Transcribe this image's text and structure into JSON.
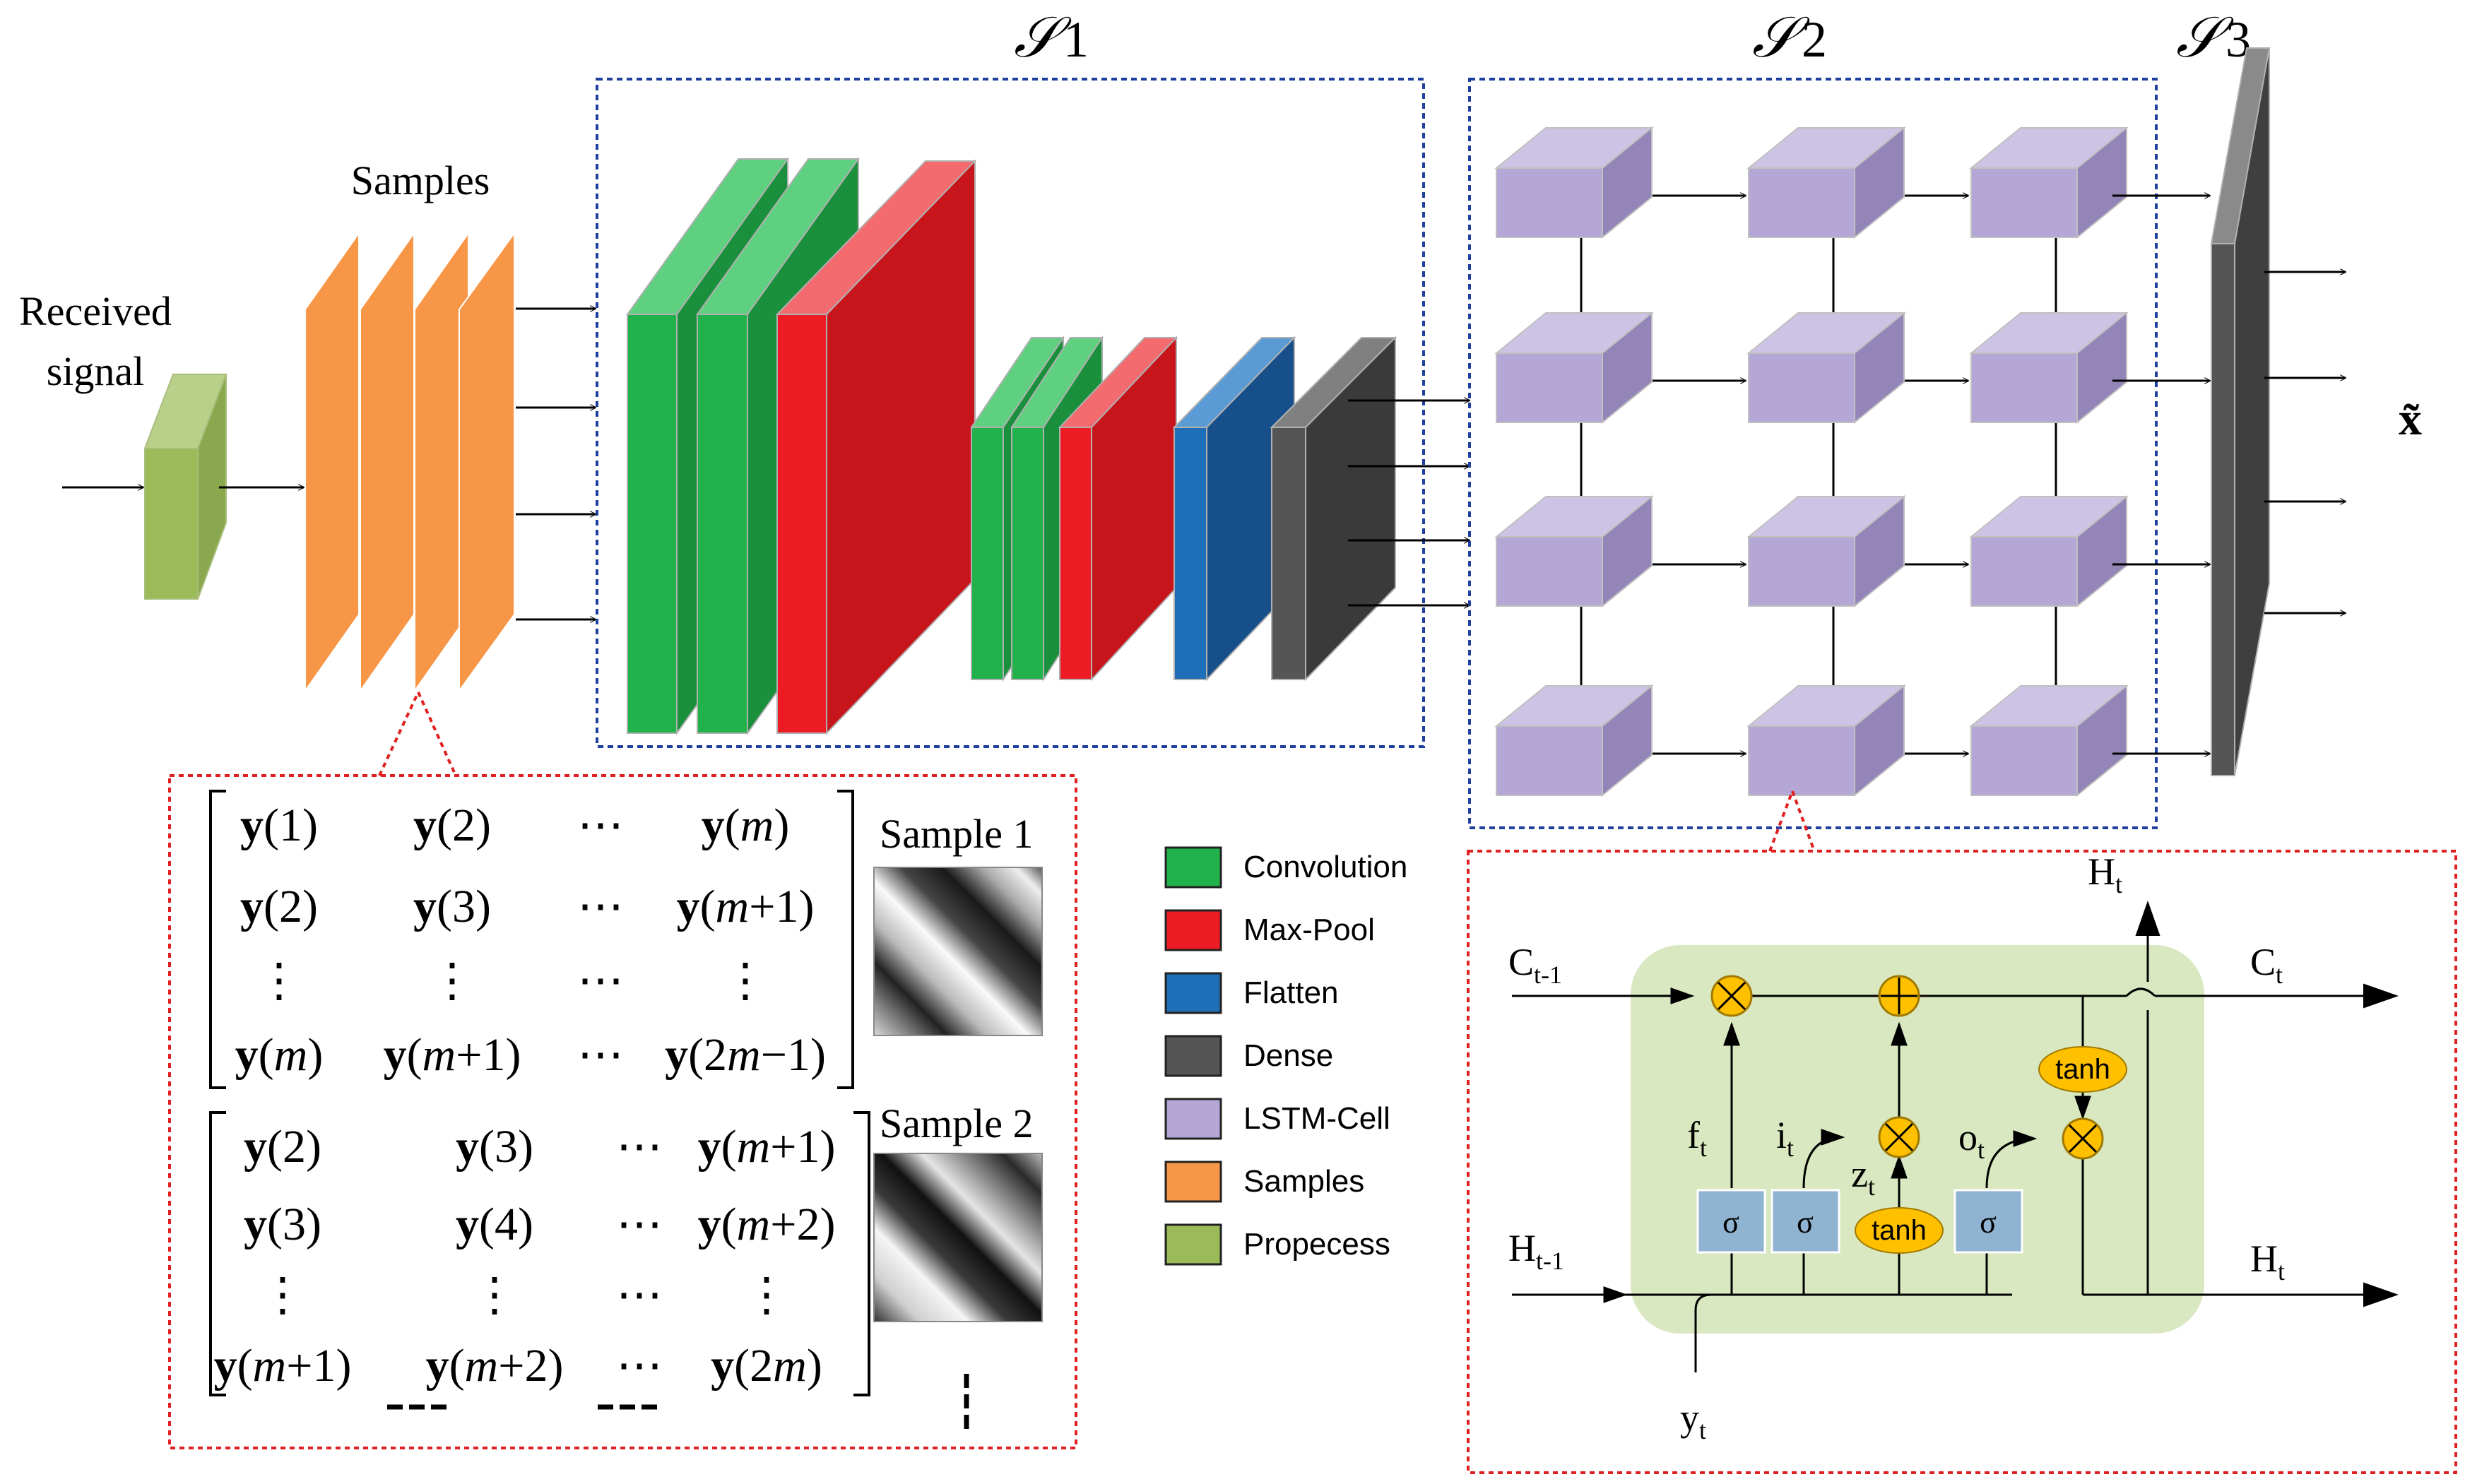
{
  "labels": {
    "received_signal_line1": "Received",
    "received_signal_line2": "signal",
    "samples": "Samples",
    "s1_base": "𝒮",
    "s1_sub": "1",
    "s2_base": "𝒮",
    "s2_sub": "2",
    "s3_base": "𝒮",
    "s3_sub": "3",
    "output": "x̃",
    "sample1": "Sample 1",
    "sample2": "Sample 2"
  },
  "matrix1": {
    "rows": [
      [
        "y(1)",
        "y(2)",
        "⋯",
        "y(m)"
      ],
      [
        "y(2)",
        "y(3)",
        "⋯",
        "y(m+1)"
      ],
      [
        "⋮",
        "⋮",
        "⋯",
        "⋮"
      ],
      [
        "y(m)",
        "y(m+1)",
        "⋯",
        "y(2m−1)"
      ]
    ]
  },
  "matrix2": {
    "rows": [
      [
        "y(2)",
        "y(3)",
        "⋯",
        "y(m+1)"
      ],
      [
        "y(3)",
        "y(4)",
        "⋯",
        "y(m+2)"
      ],
      [
        "⋮",
        "⋮",
        "⋯",
        "⋮"
      ],
      [
        "y(m+1)",
        "y(m+2)",
        "⋯",
        "y(2m)"
      ]
    ]
  },
  "legend": [
    {
      "label": "Convolution",
      "color": "#22b24c"
    },
    {
      "label": "Max-Pool",
      "color": "#ed1c24"
    },
    {
      "label": "Flatten",
      "color": "#1f6fb8"
    },
    {
      "label": "Dense",
      "color": "#555555"
    },
    {
      "label": "LSTM-Cell",
      "color": "#b4a7d6"
    },
    {
      "label": "Samples",
      "color": "#f79646"
    },
    {
      "label": "Propecess",
      "color": "#9bbb59"
    }
  ],
  "lstm_cell": {
    "c_prev": "C",
    "c_prev_sub": "t-1",
    "c_next": "C",
    "c_next_sub": "t",
    "h_prev": "H",
    "h_prev_sub": "t-1",
    "h_top": "H",
    "h_top_sub": "t",
    "h_next": "H",
    "h_next_sub": "t",
    "y_in": "y",
    "y_in_sub": "t",
    "f": "f",
    "f_sub": "t",
    "i": "i",
    "i_sub": "t",
    "z": "z",
    "z_sub": "t",
    "o": "o",
    "o_sub": "t",
    "sigma": "σ",
    "tanh": "tanh"
  },
  "colors": {
    "conv": "#22b24c",
    "pool": "#ed1c24",
    "flatten": "#1f6fb8",
    "dense": "#555555",
    "lstm": "#b4a7d6",
    "samples": "#f79646",
    "preprocess": "#9bbb59",
    "cell_bg": "#d9e8c0",
    "gate": "#8fb3d0",
    "op": "#ffc000",
    "frame_blue": "#1f3f9e",
    "frame_red": "#e02020"
  }
}
